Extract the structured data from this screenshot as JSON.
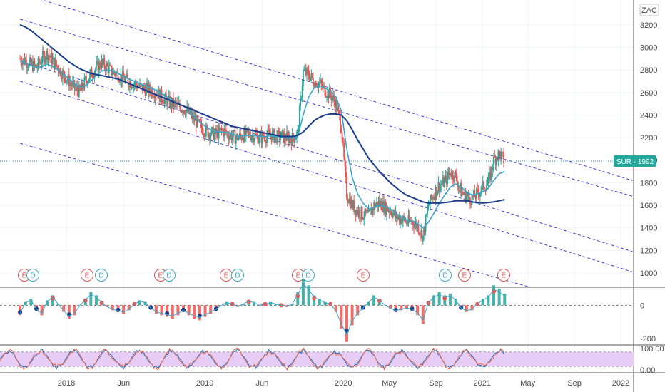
{
  "chart_data": {
    "type": "candlestick",
    "currency": "ZAC",
    "symbol_tag": "SUR - 1992",
    "last_price": 1992,
    "price_axis": {
      "ylim": [
        880,
        3420
      ],
      "ticks": [
        1000,
        1200,
        1400,
        1600,
        1800,
        2000,
        2200,
        2400,
        2600,
        2800,
        3000,
        3200
      ],
      "tick_labels": [
        "1000",
        "1200",
        "1400",
        "1600",
        "1800",
        "2000",
        "2200",
        "2400",
        "2600",
        "2800",
        "3000",
        "3200"
      ]
    },
    "time_axis": {
      "labels": [
        "2018",
        "Jun",
        "2019",
        "Jun",
        "2020",
        "May",
        "Sep",
        "2021",
        "May",
        "Sep",
        "2022"
      ]
    },
    "price_series": {
      "start_date": "2017-09-01",
      "close": [
        2900,
        2880,
        2850,
        2820,
        2900,
        2950,
        2880,
        2820,
        2760,
        2700,
        2640,
        2600,
        2700,
        2760,
        2820,
        2860,
        2820,
        2780,
        2760,
        2720,
        2700,
        2680,
        2650,
        2630,
        2620,
        2600,
        2560,
        2520,
        2500,
        2480,
        2460,
        2420,
        2360,
        2300,
        2260,
        2240,
        2230,
        2260,
        2240,
        2210,
        2200,
        2220,
        2230,
        2220,
        2200,
        2210,
        2230,
        2200,
        2210,
        2200,
        2190,
        2240,
        2780,
        2760,
        2700,
        2680,
        2620,
        2580,
        2500,
        2300,
        1700,
        1600,
        1550,
        1520,
        1500,
        1600,
        1620,
        1580,
        1560,
        1500,
        1480,
        1450,
        1460,
        1420,
        1320,
        1600,
        1700,
        1780,
        1800,
        1900,
        1850,
        1720,
        1680,
        1660,
        1700,
        1760,
        1800,
        2000,
        2060,
        1992
      ]
    },
    "series": [
      {
        "name": "",
        "color": "#3ea5c8",
        "values": [
          2880,
          2860,
          2840,
          2820,
          2830,
          2850,
          2830,
          2800,
          2760,
          2720,
          2680,
          2650,
          2660,
          2700,
          2750,
          2790,
          2800,
          2790,
          2770,
          2740,
          2720,
          2700,
          2680,
          2660,
          2640,
          2620,
          2590,
          2560,
          2530,
          2500,
          2480,
          2440,
          2390,
          2340,
          2300,
          2270,
          2250,
          2250,
          2245,
          2230,
          2215,
          2215,
          2220,
          2220,
          2210,
          2210,
          2215,
          2210,
          2205,
          2200,
          2195,
          2210,
          2400,
          2560,
          2640,
          2660,
          2640,
          2610,
          2560,
          2440,
          2100,
          1850,
          1700,
          1620,
          1570,
          1580,
          1600,
          1590,
          1570,
          1530,
          1500,
          1470,
          1460,
          1440,
          1400,
          1450,
          1530,
          1620,
          1690,
          1760,
          1790,
          1760,
          1720,
          1690,
          1700,
          1720,
          1750,
          1820,
          1880,
          1900
        ]
      },
      {
        "name": "",
        "color": "#1a3c8a",
        "values": [
          3200,
          3180,
          3150,
          3110,
          3070,
          3030,
          2990,
          2950,
          2910,
          2870,
          2840,
          2810,
          2790,
          2770,
          2760,
          2750,
          2740,
          2730,
          2720,
          2700,
          2680,
          2660,
          2640,
          2620,
          2600,
          2580,
          2560,
          2540,
          2520,
          2500,
          2480,
          2460,
          2440,
          2420,
          2400,
          2380,
          2360,
          2340,
          2320,
          2300,
          2290,
          2280,
          2270,
          2260,
          2250,
          2240,
          2230,
          2220,
          2210,
          2210,
          2210,
          2220,
          2250,
          2300,
          2350,
          2380,
          2400,
          2410,
          2410,
          2400,
          2350,
          2270,
          2180,
          2100,
          2020,
          1960,
          1900,
          1850,
          1800,
          1760,
          1720,
          1690,
          1670,
          1650,
          1630,
          1620,
          1620,
          1620,
          1625,
          1630,
          1640,
          1640,
          1640,
          1630,
          1625,
          1620,
          1625,
          1630,
          1640,
          1650
        ]
      }
    ],
    "channel_lines": [
      {
        "from": [
          "2017-09-01",
          3480
        ],
        "to": [
          "2022-02-01",
          1820
        ]
      },
      {
        "from": [
          "2017-09-01",
          3250
        ],
        "to": [
          "2022-02-01",
          1680
        ]
      },
      {
        "from": [
          "2017-09-01",
          2880
        ],
        "to": [
          "2022-02-01",
          1190
        ]
      },
      {
        "from": [
          "2017-09-01",
          2700
        ],
        "to": [
          "2022-02-01",
          1010
        ]
      },
      {
        "from": [
          "2017-09-01",
          2150
        ],
        "to": [
          "2021-05-01",
          880
        ]
      }
    ],
    "event_markers": [
      {
        "label": "E",
        "kind": "earnings",
        "color": "#e05252"
      },
      {
        "label": "D",
        "kind": "dividend",
        "color": "#3ea5c8"
      },
      {
        "label": "E",
        "kind": "earnings",
        "color": "#e05252"
      },
      {
        "label": "D",
        "kind": "dividend",
        "color": "#3ea5c8"
      },
      {
        "label": "E",
        "kind": "earnings",
        "color": "#e05252"
      },
      {
        "label": "D",
        "kind": "dividend",
        "color": "#3ea5c8"
      },
      {
        "label": "E",
        "kind": "earnings",
        "color": "#e05252"
      },
      {
        "label": "D",
        "kind": "dividend",
        "color": "#3ea5c8"
      },
      {
        "label": "E",
        "kind": "earnings",
        "color": "#e05252"
      },
      {
        "label": "D",
        "kind": "dividend",
        "color": "#3ea5c8"
      },
      {
        "label": "E",
        "kind": "earnings",
        "color": "#e05252"
      },
      {
        "label": "D",
        "kind": "dividend",
        "color": "#3ea5c8"
      },
      {
        "label": "E",
        "kind": "earnings",
        "color": "#e05252"
      },
      {
        "label": "E",
        "kind": "earnings",
        "color": "#e05252"
      }
    ],
    "oscillator": {
      "tick_labels": [
        "0",
        "-200"
      ],
      "ylim": [
        -230,
        100
      ],
      "values": [
        -60,
        20,
        40,
        -30,
        -60,
        30,
        60,
        10,
        -40,
        -80,
        -60,
        0,
        40,
        80,
        60,
        20,
        -10,
        -30,
        -40,
        -50,
        -30,
        10,
        30,
        20,
        -20,
        -50,
        -60,
        -70,
        -80,
        -60,
        -40,
        -60,
        -80,
        -90,
        -70,
        -50,
        -30,
        0,
        20,
        10,
        -10,
        10,
        30,
        20,
        0,
        10,
        20,
        10,
        0,
        -10,
        10,
        80,
        160,
        120,
        60,
        40,
        20,
        10,
        -40,
        -140,
        -220,
        -120,
        -60,
        -20,
        20,
        60,
        40,
        0,
        -20,
        -40,
        -30,
        -20,
        -30,
        -60,
        -110,
        20,
        60,
        80,
        60,
        70,
        40,
        -20,
        -40,
        -30,
        10,
        40,
        60,
        120,
        100,
        70
      ]
    },
    "stochastic": {
      "tick_labels": [
        "100.00",
        "0.00"
      ],
      "band": [
        20,
        80
      ],
      "band_color": "#e7cdf5"
    }
  }
}
